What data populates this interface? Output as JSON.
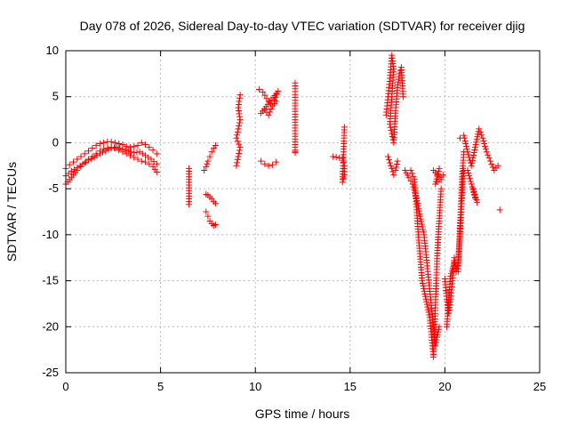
{
  "chart_data": {
    "type": "scatter",
    "title": "Day 078 of 2026, Sidereal Day-to-day VTEC variation (SDTVAR) for receiver djig",
    "xlabel": "GPS time / hours",
    "ylabel": "SDTVAR / TECUs",
    "xlim": [
      0,
      25
    ],
    "ylim": [
      -25,
      10
    ],
    "xticks": [
      "0",
      "5",
      "10",
      "15",
      "20",
      "25"
    ],
    "yticks": [
      "10",
      "5",
      "0",
      "-5",
      "-10",
      "-15",
      "-20",
      "-25"
    ],
    "grid": true,
    "marker": "plus",
    "marker_color": "#ff0000",
    "series": [
      {
        "name": "SDTVAR",
        "segments": [
          {
            "x": [
              0.0,
              0.2,
              0.4,
              0.6,
              0.8,
              1.0,
              1.2,
              1.4,
              1.6,
              1.8,
              2.0,
              2.2,
              2.4,
              2.6,
              2.8,
              3.0,
              3.2,
              3.4,
              3.6,
              3.8,
              4.0,
              4.2,
              4.4,
              4.6,
              4.8
            ],
            "y": [
              -2.8,
              -2.4,
              -2.1,
              -1.8,
              -1.5,
              -1.2,
              -0.9,
              -0.6,
              -0.3,
              -0.1,
              0.0,
              0.1,
              0.1,
              0.0,
              -0.1,
              -0.2,
              -0.4,
              -0.5,
              -0.4,
              -0.3,
              0.0,
              -0.2,
              -0.5,
              -0.8,
              -1.2
            ]
          },
          {
            "x": [
              0.0,
              0.2,
              0.4,
              0.6,
              0.8,
              1.0,
              1.2,
              1.4,
              1.6,
              1.8,
              2.0,
              2.2,
              2.4,
              2.6,
              2.8,
              3.0,
              3.2,
              3.4,
              3.6,
              3.8,
              4.0,
              4.2,
              4.4,
              4.6,
              4.8
            ],
            "y": [
              -4.5,
              -4.0,
              -3.5,
              -3.0,
              -2.6,
              -2.2,
              -1.8,
              -1.5,
              -1.2,
              -0.9,
              -0.7,
              -0.6,
              -0.5,
              -0.6,
              -0.8,
              -1.0,
              -1.2,
              -1.4,
              -1.6,
              -1.8,
              -2.0,
              -2.1,
              -2.3,
              -2.6,
              -3.2
            ]
          },
          {
            "x": [
              0.0,
              0.3,
              0.6,
              0.9,
              1.2,
              1.5,
              1.8,
              2.1,
              2.4,
              2.7,
              3.0,
              3.3,
              3.6,
              3.9,
              4.2,
              4.5,
              4.8
            ],
            "y": [
              -3.6,
              -3.1,
              -2.7,
              -2.3,
              -1.9,
              -1.6,
              -1.2,
              -0.9,
              -0.6,
              -0.5,
              -0.7,
              -0.9,
              -1.1,
              -1.0,
              -1.4,
              -1.8,
              -2.3
            ]
          },
          {
            "x": [
              6.5,
              6.5,
              6.5
            ],
            "y": [
              -2.8,
              -4.9,
              -6.7
            ]
          },
          {
            "x": [
              7.3,
              7.4,
              7.5,
              7.6,
              7.7,
              7.8,
              7.9
            ],
            "y": [
              -3.0,
              -2.6,
              -2.0,
              -1.5,
              -1.0,
              -0.6,
              -0.3
            ]
          },
          {
            "x": [
              7.4,
              7.5,
              7.6,
              7.7,
              7.8,
              7.9
            ],
            "y": [
              -5.6,
              -5.7,
              -5.9,
              -6.1,
              -6.4,
              -6.6
            ]
          },
          {
            "x": [
              7.4,
              7.5,
              7.6,
              7.7,
              7.8,
              7.9
            ],
            "y": [
              -7.5,
              -8.0,
              -8.5,
              -8.8,
              -9.0,
              -8.9
            ]
          },
          {
            "x": [
              9.0,
              9.1,
              9.2,
              9.0,
              9.1,
              9.2,
              9.1,
              9.2
            ],
            "y": [
              -2.5,
              -1.5,
              -0.5,
              0.5,
              1.5,
              2.5,
              3.8,
              5.2
            ]
          },
          {
            "x": [
              10.2,
              10.4,
              10.6,
              10.8,
              11.0,
              11.2,
              10.3,
              10.5,
              10.7,
              10.9,
              11.1
            ],
            "y": [
              5.8,
              5.5,
              4.8,
              4.2,
              4.6,
              5.6,
              3.2,
              3.6,
              3.0,
              4.0,
              4.5
            ]
          },
          {
            "x": [
              10.3,
              10.5,
              10.7,
              10.9,
              11.1
            ],
            "y": [
              -2.0,
              -2.3,
              -2.5,
              -2.4,
              -2.1
            ]
          },
          {
            "x": [
              12.1,
              12.1,
              12.1,
              12.1,
              12.1
            ],
            "y": [
              6.5,
              4.3,
              2.2,
              -1.1,
              -1.0
            ]
          },
          {
            "x": [
              14.1,
              14.6,
              14.7,
              14.7,
              14.6,
              14.7
            ],
            "y": [
              -1.5,
              -1.7,
              -2.5,
              -3.5,
              -4.3,
              1.7
            ]
          },
          {
            "x": [
              16.9,
              17.0,
              17.1,
              17.2,
              17.3,
              17.1,
              17.2,
              17.3,
              17.4,
              17.5,
              17.6,
              17.7,
              17.8
            ],
            "y": [
              3.0,
              5.0,
              7.0,
              9.5,
              8.0,
              2.0,
              1.0,
              0.0,
              3.5,
              6.0,
              7.5,
              8.2,
              5.0
            ]
          },
          {
            "x": [
              17.0,
              17.1,
              17.2,
              17.3,
              17.4,
              17.5
            ],
            "y": [
              -1.5,
              -2.2,
              -2.8,
              -3.5,
              -3.0,
              -2.0
            ]
          },
          {
            "x": [
              17.9,
              18.1,
              18.3,
              18.5,
              18.7,
              18.9,
              19.1,
              19.3,
              19.5,
              19.7
            ],
            "y": [
              -3.0,
              -3.8,
              -4.5,
              -6.0,
              -8.0,
              -10.0,
              -14.0,
              -18.0,
              -22.0,
              -20.0
            ]
          },
          {
            "x": [
              18.2,
              18.4,
              18.6,
              18.8,
              19.0,
              19.2,
              19.4,
              19.6,
              19.8
            ],
            "y": [
              -3.0,
              -4.0,
              -10.0,
              -15.0,
              -17.0,
              -19.0,
              -23.3,
              -12.0,
              -5.0
            ]
          },
          {
            "x": [
              19.4,
              19.6,
              19.8,
              19.9,
              19.5,
              19.7
            ],
            "y": [
              -3.0,
              -3.5,
              -4.0,
              -3.5,
              -4.5,
              -2.8
            ]
          },
          {
            "x": [
              20.0,
              20.1,
              20.2,
              20.3,
              20.4,
              20.5,
              20.6,
              20.7,
              20.8,
              20.9,
              21.0
            ],
            "y": [
              -14.8,
              -17.0,
              -18.5,
              -17.0,
              -15.0,
              -12.5,
              -14.0,
              -13.0,
              -10.0,
              -6.0,
              -3.0
            ]
          },
          {
            "x": [
              20.1,
              20.3,
              20.5,
              20.7,
              20.9,
              21.0
            ],
            "y": [
              -20.0,
              -14.5,
              -13.0,
              -14.0,
              -4.0,
              -1.0
            ]
          },
          {
            "x": [
              20.8,
              21.0,
              21.2,
              21.4,
              21.6,
              21.8,
              22.0,
              22.2,
              22.4,
              22.6,
              22.8
            ],
            "y": [
              0.5,
              0.8,
              -1.0,
              -2.5,
              -0.5,
              1.5,
              0.5,
              -1.0,
              -2.0,
              -3.0,
              -2.5
            ]
          },
          {
            "x": [
              21.2,
              21.4,
              21.6,
              21.5,
              21.7
            ],
            "y": [
              -3.0,
              -4.5,
              -6.0,
              -5.0,
              -6.5
            ]
          },
          {
            "x": [
              22.9
            ],
            "y": [
              -7.3
            ]
          }
        ]
      }
    ]
  }
}
